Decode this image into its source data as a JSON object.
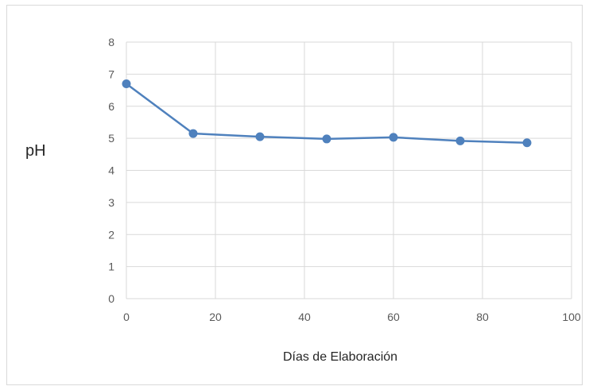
{
  "chart_data": {
    "type": "line",
    "title": "",
    "xlabel": "Días de Elaboración",
    "ylabel": "pH",
    "xlim": [
      0,
      100
    ],
    "ylim": [
      0,
      8
    ],
    "x_ticks": [
      0,
      20,
      40,
      60,
      80,
      100
    ],
    "y_ticks": [
      0,
      1,
      2,
      3,
      4,
      5,
      6,
      7,
      8
    ],
    "grid": true,
    "legend": "none",
    "series": [
      {
        "color": "#4f81bd",
        "x": [
          0,
          15,
          30,
          45,
          60,
          75,
          90
        ],
        "y": [
          6.7,
          5.15,
          5.05,
          4.98,
          5.03,
          4.92,
          4.86
        ]
      }
    ]
  }
}
